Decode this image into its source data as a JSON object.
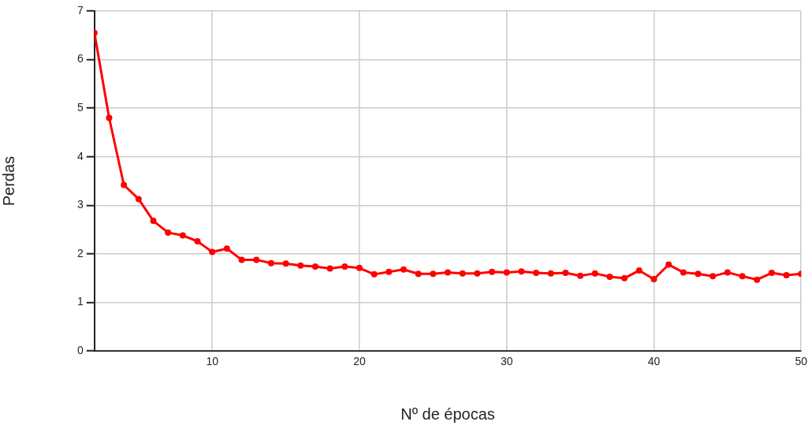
{
  "chart_data": {
    "type": "line",
    "xlabel": "Nº de épocas",
    "ylabel": "Perdas",
    "x": [
      2,
      3,
      4,
      5,
      6,
      7,
      8,
      9,
      10,
      11,
      12,
      13,
      14,
      15,
      16,
      17,
      18,
      19,
      20,
      21,
      22,
      23,
      24,
      25,
      26,
      27,
      28,
      29,
      30,
      31,
      32,
      33,
      34,
      35,
      36,
      37,
      38,
      39,
      40,
      41,
      42,
      43,
      44,
      45,
      46,
      47,
      48,
      49,
      50
    ],
    "series": [
      {
        "color": "#ff0000",
        "values": [
          6.55,
          4.8,
          3.42,
          3.13,
          2.68,
          2.44,
          2.38,
          2.26,
          2.04,
          2.11,
          1.88,
          1.88,
          1.81,
          1.8,
          1.76,
          1.74,
          1.7,
          1.74,
          1.71,
          1.58,
          1.63,
          1.68,
          1.59,
          1.59,
          1.62,
          1.6,
          1.6,
          1.63,
          1.62,
          1.64,
          1.61,
          1.6,
          1.61,
          1.55,
          1.6,
          1.53,
          1.5,
          1.66,
          1.48,
          1.78,
          1.62,
          1.59,
          1.54,
          1.62,
          1.54,
          1.47,
          1.61,
          1.56,
          1.59
        ]
      }
    ],
    "xlim": [
      2,
      50
    ],
    "xticks": [
      10,
      20,
      30,
      40,
      50
    ],
    "ylim": [
      0,
      7
    ],
    "yticks": [
      0,
      1,
      2,
      3,
      4,
      5,
      6,
      7
    ],
    "grid": true,
    "legend": false,
    "marker": "circle",
    "line_style": "solid"
  }
}
